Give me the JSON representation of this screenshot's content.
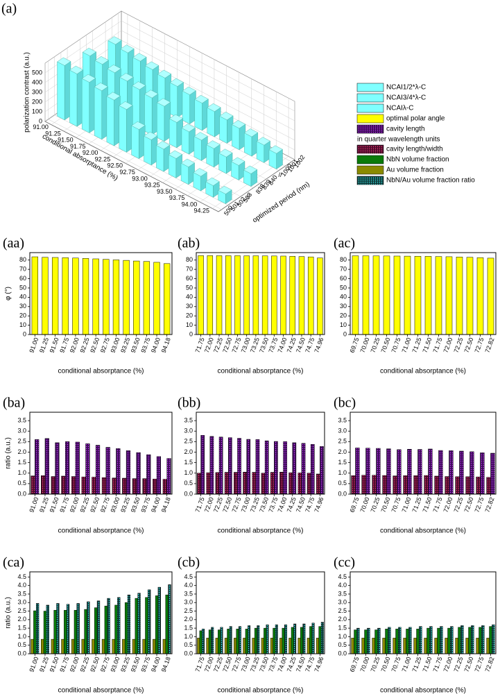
{
  "chart_data": [
    {
      "type": "bar3d",
      "panel_label": "(a)",
      "zlabel": "polarization contrast (a.u.)",
      "xlabel": "conditional absorptance (%)",
      "ylabel": "optimized period (nm)",
      "categories": [
        "91.00",
        "91.25",
        "91.50",
        "91.75",
        "92.00",
        "92.25",
        "92.50",
        "92.75",
        "93.00",
        "93.25",
        "93.50",
        "93.75",
        "94.00",
        "94.25"
      ],
      "period_ticks": [
        500,
        501,
        502,
        503,
        838,
        839,
        840,
        1000,
        1001,
        1002
      ],
      "zlim": [
        0,
        600
      ],
      "zticks": [
        0,
        100,
        200,
        300,
        400,
        500
      ],
      "series": [
        {
          "name": "NCAI1/2*λ-C",
          "color": "#80ffff",
          "values": [
            560,
            540,
            520,
            500,
            470,
            440,
            300,
            260,
            230,
            200,
            180,
            150,
            120,
            100
          ]
        },
        {
          "name": "NCAI3/4*λ-C",
          "color": "#80ffff",
          "values": [
            480,
            460,
            440,
            420,
            400,
            380,
            360,
            260,
            230,
            210,
            190,
            170,
            150,
            130
          ]
        },
        {
          "name": "NCAIλ-C",
          "color": "#80ffff",
          "values": [
            420,
            400,
            380,
            360,
            340,
            320,
            300,
            280,
            260,
            240,
            220,
            200,
            180,
            160
          ]
        }
      ],
      "extra_legend": [
        {
          "name": "optimal polar angle",
          "color": "#ffff00"
        },
        {
          "name": "cavity length",
          "color": "#3d0a5a",
          "dots": "#d040ff"
        },
        {
          "note": "in quarter wavelength units"
        },
        {
          "name": "cavity length/width",
          "color": "#4a0a2a",
          "dots": "#ff4080"
        },
        {
          "name": "NbN volume fraction",
          "color": "#0a7a0a"
        },
        {
          "name": "Au volume fraction",
          "color": "#8a8a00"
        },
        {
          "name": "NbN/Au volume fraction ratio",
          "color": "#0f3a3a",
          "dots": "#40ffff"
        }
      ]
    },
    {
      "type": "bar",
      "panel_label": "(aa)",
      "ylabel": "φ (°)",
      "xlabel": "conditional absorptance (%)",
      "categories": [
        "91.00",
        "91.25",
        "91.50",
        "91.75",
        "92.00",
        "92.25",
        "92.50",
        "92.75",
        "93.00",
        "93.25",
        "93.50",
        "93.75",
        "94.00",
        "94.18"
      ],
      "ylim": [
        0,
        88
      ],
      "yticks": [
        0,
        10,
        20,
        30,
        40,
        50,
        60,
        70,
        80
      ],
      "series": [
        {
          "color": "#ffff00",
          "values": [
            83.5,
            83.0,
            82.8,
            82.6,
            82.2,
            81.8,
            81.3,
            80.8,
            80.2,
            79.7,
            79.0,
            78.5,
            77.6,
            76.2
          ]
        }
      ]
    },
    {
      "type": "bar",
      "panel_label": "(ab)",
      "xlabel": "conditional absorptance (%)",
      "categories": [
        "71.75",
        "72.00",
        "72.25",
        "72.50",
        "72.75",
        "73.00",
        "73.25",
        "73.50",
        "73.75",
        "74.00",
        "74.25",
        "74.50",
        "74.75",
        "74.96"
      ],
      "ylim": [
        0,
        88
      ],
      "yticks": [
        0,
        10,
        20,
        30,
        40,
        50,
        60,
        70,
        80
      ],
      "series": [
        {
          "color": "#ffff00",
          "values": [
            84.8,
            84.8,
            84.7,
            84.7,
            84.7,
            84.6,
            84.6,
            84.5,
            84.4,
            84.3,
            84.1,
            83.8,
            83.4,
            82.3
          ]
        }
      ]
    },
    {
      "type": "bar",
      "panel_label": "(ac)",
      "xlabel": "conditional absorptance (%)",
      "categories": [
        "69.75",
        "70.00",
        "70.25",
        "70.50",
        "70.75",
        "71.00",
        "71.25",
        "71.50",
        "71.75",
        "72.00",
        "72.25",
        "72.50",
        "72.75",
        "72.82"
      ],
      "ylim": [
        0,
        88
      ],
      "yticks": [
        0,
        10,
        20,
        30,
        40,
        50,
        60,
        70,
        80
      ],
      "series": [
        {
          "color": "#ffff00",
          "values": [
            84.6,
            84.6,
            84.5,
            84.4,
            84.3,
            84.2,
            84.1,
            84.0,
            83.8,
            83.6,
            83.3,
            83.0,
            82.6,
            82.1
          ]
        }
      ]
    },
    {
      "type": "bar",
      "panel_label": "(ba)",
      "ylabel": "ratio (a.u.)",
      "xlabel": "conditional absorptance (%)",
      "categories": [
        "91.00",
        "91.25",
        "91.50",
        "91.75",
        "92.00",
        "92.25",
        "92.50",
        "92.75",
        "93.00",
        "93.25",
        "93.50",
        "93.75",
        "94.00",
        "94.18"
      ],
      "ylim": [
        0,
        3.9
      ],
      "yticks": [
        {
          "value": 0,
          "label": "0.0"
        },
        0.5,
        {
          "value": 1,
          "label": "1.0"
        },
        1.5,
        {
          "value": 2,
          "label": "2.0"
        },
        2.5,
        {
          "value": 3,
          "label": "3.0"
        },
        3.5
      ],
      "series": [
        {
          "color": "#4a0a2a",
          "dots": "#ff4080",
          "values": [
            0.87,
            0.88,
            0.84,
            0.86,
            0.84,
            0.82,
            0.81,
            0.79,
            0.77,
            0.76,
            0.74,
            0.74,
            0.72,
            0.71
          ]
        },
        {
          "color": "#3d0a5a",
          "dots": "#d040ff",
          "values": [
            2.6,
            2.65,
            2.45,
            2.5,
            2.48,
            2.4,
            2.33,
            2.23,
            2.17,
            2.07,
            1.98,
            1.88,
            1.79,
            1.7
          ]
        }
      ]
    },
    {
      "type": "bar",
      "panel_label": "(bb)",
      "xlabel": "conditional absorptance (%)",
      "categories": [
        "71.75",
        "72.00",
        "72.25",
        "72.50",
        "72.75",
        "73.00",
        "73.25",
        "73.50",
        "73.75",
        "74.00",
        "74.25",
        "74.50",
        "74.75",
        "74.96"
      ],
      "ylim": [
        0,
        3.9
      ],
      "yticks": [
        {
          "value": 0,
          "label": "0.0"
        },
        0.5,
        {
          "value": 1,
          "label": "1.0"
        },
        1.5,
        {
          "value": 2,
          "label": "2.0"
        },
        2.5,
        {
          "value": 3,
          "label": "3.0"
        },
        3.5
      ],
      "series": [
        {
          "color": "#4a0a2a",
          "dots": "#ff4080",
          "values": [
            1.0,
            1.02,
            1.03,
            1.04,
            1.04,
            1.05,
            1.04,
            1.0,
            1.04,
            1.05,
            1.02,
            1.01,
            1.0,
            0.96
          ]
        },
        {
          "color": "#3d0a5a",
          "dots": "#d040ff",
          "values": [
            2.8,
            2.75,
            2.72,
            2.69,
            2.66,
            2.61,
            2.6,
            2.54,
            2.51,
            2.5,
            2.45,
            2.42,
            2.37,
            2.27
          ]
        }
      ]
    },
    {
      "type": "bar",
      "panel_label": "(bc)",
      "xlabel": "conditional absorptance (%)",
      "categories": [
        "69.75",
        "70.00",
        "70.25",
        "70.50",
        "70.75",
        "71.00",
        "71.25",
        "71.50",
        "71.75",
        "72.00",
        "72.25",
        "72.50",
        "72.75",
        "72.82"
      ],
      "ylim": [
        0,
        3.9
      ],
      "yticks": [
        {
          "value": 0,
          "label": "0.0"
        },
        0.5,
        {
          "value": 1,
          "label": "1.0"
        },
        1.5,
        {
          "value": 2,
          "label": "2.0"
        },
        2.5,
        {
          "value": 3,
          "label": "3.0"
        },
        3.5
      ],
      "series": [
        {
          "color": "#4a0a2a",
          "dots": "#ff4080",
          "values": [
            0.88,
            0.9,
            0.9,
            0.89,
            0.87,
            0.88,
            0.88,
            0.89,
            0.86,
            0.84,
            0.83,
            0.83,
            0.82,
            0.8
          ]
        },
        {
          "color": "#3d0a5a",
          "dots": "#d040ff",
          "values": [
            2.2,
            2.19,
            2.18,
            2.16,
            2.12,
            2.14,
            2.13,
            2.15,
            2.08,
            2.07,
            2.05,
            2.02,
            1.97,
            1.95
          ]
        }
      ]
    },
    {
      "type": "bar",
      "panel_label": "(ca)",
      "ylabel": "ratio (a.u.)",
      "xlabel": "conditional absorptance (%)",
      "categories": [
        "91.00",
        "91.25",
        "91.50",
        "91.75",
        "92.00",
        "92.25",
        "92.50",
        "92.75",
        "93.00",
        "93.25",
        "93.50",
        "93.75",
        "94.00",
        "94.18"
      ],
      "ylim": [
        0,
        4.8
      ],
      "yticks": [
        {
          "value": 0,
          "label": "0.0"
        },
        0.5,
        {
          "value": 1,
          "label": "1.0"
        },
        1.5,
        {
          "value": 2,
          "label": "2.0"
        },
        2.5,
        {
          "value": 3,
          "label": "3.0"
        },
        3.5,
        {
          "value": 4,
          "label": "4.0"
        },
        4.5
      ],
      "series": [
        {
          "color": "#8a8a00",
          "values": [
            0.85,
            0.85,
            0.85,
            0.85,
            0.85,
            0.85,
            0.85,
            0.85,
            0.85,
            0.85,
            0.85,
            0.85,
            0.85,
            0.85
          ]
        },
        {
          "color": "#0a7a0a",
          "values": [
            2.52,
            2.5,
            2.55,
            2.55,
            2.55,
            2.6,
            2.7,
            2.8,
            2.85,
            3.0,
            3.25,
            3.3,
            3.4,
            3.45
          ]
        },
        {
          "color": "#0f3a3a",
          "dots": "#40ffff",
          "values": [
            2.95,
            2.85,
            2.95,
            2.9,
            2.95,
            3.05,
            3.1,
            3.25,
            3.3,
            3.45,
            3.55,
            3.75,
            3.9,
            4.05
          ]
        }
      ]
    },
    {
      "type": "bar",
      "panel_label": "(cb)",
      "xlabel": "conditional absorptance (%)",
      "categories": [
        "71.75",
        "72.00",
        "72.25",
        "72.50",
        "72.75",
        "73.00",
        "73.25",
        "73.50",
        "73.75",
        "74.00",
        "74.25",
        "74.50",
        "74.75",
        "74.96"
      ],
      "ylim": [
        0,
        4.8
      ],
      "yticks": [
        {
          "value": 0,
          "label": "0.0"
        },
        0.5,
        {
          "value": 1,
          "label": "1.0"
        },
        1.5,
        {
          "value": 2,
          "label": "2.0"
        },
        2.5,
        {
          "value": 3,
          "label": "3.0"
        },
        3.5,
        {
          "value": 4,
          "label": "4.0"
        },
        4.5
      ],
      "series": [
        {
          "color": "#8a8a00",
          "values": [
            0.92,
            0.92,
            0.92,
            0.92,
            0.92,
            0.92,
            0.92,
            0.92,
            0.92,
            0.92,
            0.92,
            0.92,
            0.92,
            0.92
          ]
        },
        {
          "color": "#0a7a0a",
          "values": [
            1.35,
            1.4,
            1.4,
            1.45,
            1.45,
            1.45,
            1.5,
            1.5,
            1.5,
            1.5,
            1.55,
            1.55,
            1.6,
            1.6
          ]
        },
        {
          "color": "#0f3a3a",
          "dots": "#40ffff",
          "values": [
            1.45,
            1.55,
            1.55,
            1.6,
            1.6,
            1.65,
            1.65,
            1.7,
            1.7,
            1.7,
            1.75,
            1.75,
            1.8,
            1.85
          ]
        }
      ]
    },
    {
      "type": "bar",
      "panel_label": "(cc)",
      "xlabel": "conditional absorptance (%)",
      "categories": [
        "69.75",
        "70.00",
        "70.25",
        "70.50",
        "70.75",
        "71.00",
        "71.25",
        "71.50",
        "71.75",
        "72.00",
        "72.25",
        "72.50",
        "72.75",
        "72.82"
      ],
      "ylim": [
        0,
        4.8
      ],
      "yticks": [
        {
          "value": 0,
          "label": "0.0"
        },
        0.5,
        {
          "value": 1,
          "label": "1.0"
        },
        1.5,
        {
          "value": 2,
          "label": "2.0"
        },
        2.5,
        {
          "value": 3,
          "label": "3.0"
        },
        3.5,
        {
          "value": 4,
          "label": "4.0"
        },
        4.5
      ],
      "series": [
        {
          "color": "#8a8a00",
          "values": [
            0.92,
            0.92,
            0.92,
            0.92,
            0.92,
            0.92,
            0.92,
            0.92,
            0.92,
            0.92,
            0.92,
            0.92,
            0.92,
            0.92
          ]
        },
        {
          "color": "#0a7a0a",
          "values": [
            1.4,
            1.4,
            1.4,
            1.45,
            1.45,
            1.45,
            1.45,
            1.5,
            1.5,
            1.5,
            1.55,
            1.55,
            1.55,
            1.6
          ]
        },
        {
          "color": "#0f3a3a",
          "dots": "#40ffff",
          "values": [
            1.5,
            1.5,
            1.5,
            1.55,
            1.55,
            1.55,
            1.6,
            1.6,
            1.6,
            1.6,
            1.65,
            1.65,
            1.65,
            1.7
          ]
        }
      ]
    }
  ]
}
